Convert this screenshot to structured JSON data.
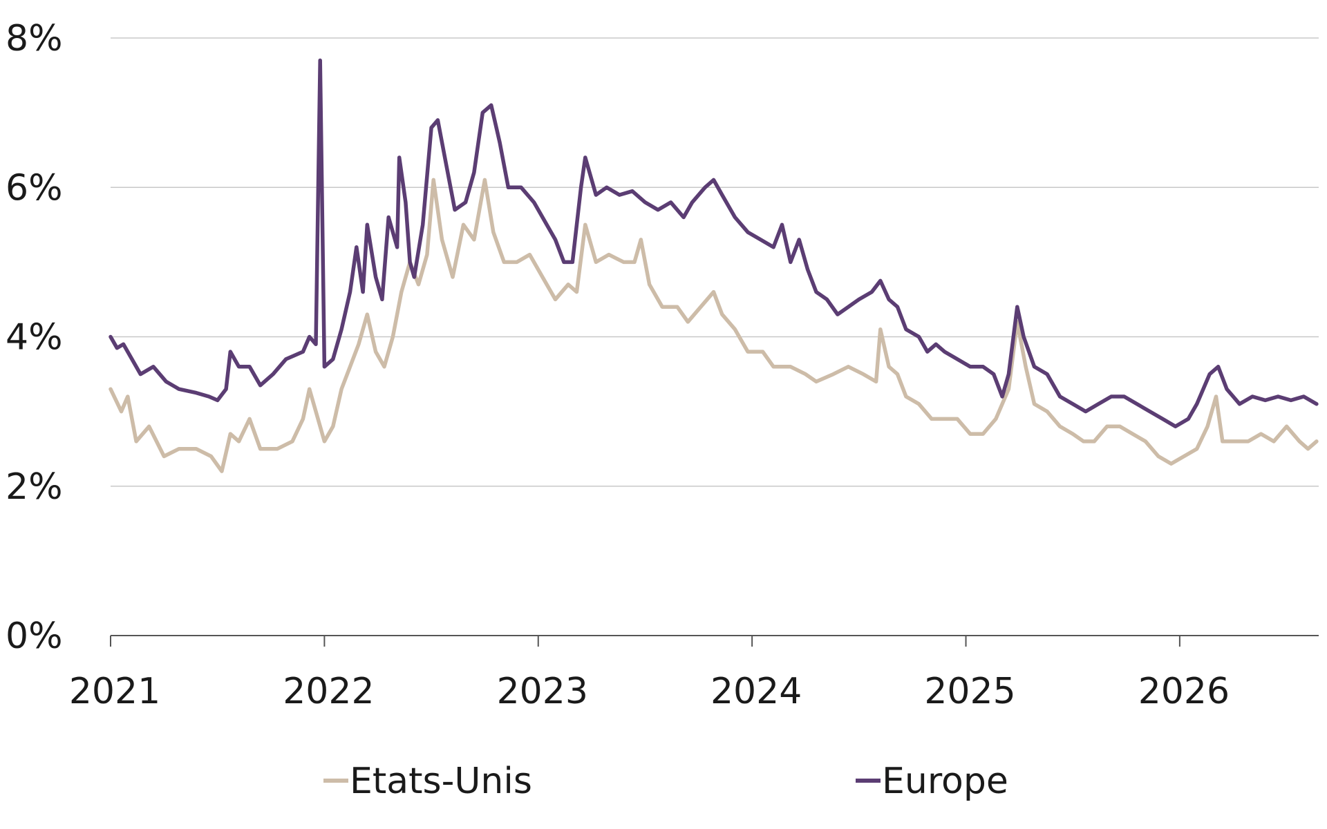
{
  "chart_data": {
    "type": "line",
    "title": "",
    "xlabel": "",
    "ylabel": "",
    "xlim": [
      2021.0,
      2026.65
    ],
    "ylim": [
      0,
      8
    ],
    "y_ticks": [
      0,
      2,
      4,
      6,
      8
    ],
    "y_tick_labels": [
      "0%",
      "2%",
      "4%",
      "6%",
      "8%"
    ],
    "x_ticks": [
      2021,
      2022,
      2023,
      2024,
      2025,
      2026
    ],
    "x_tick_labels": [
      "2021",
      "2022",
      "2023",
      "2024",
      "2025",
      "2026"
    ],
    "grid": "horizontal",
    "legend_position": "bottom",
    "series": [
      {
        "name": "Etats-Unis",
        "color": "#cdbca8",
        "points": [
          [
            2021.0,
            3.3
          ],
          [
            2021.05,
            3.0
          ],
          [
            2021.08,
            3.2
          ],
          [
            2021.12,
            2.6
          ],
          [
            2021.18,
            2.8
          ],
          [
            2021.25,
            2.4
          ],
          [
            2021.32,
            2.5
          ],
          [
            2021.4,
            2.5
          ],
          [
            2021.47,
            2.4
          ],
          [
            2021.52,
            2.2
          ],
          [
            2021.56,
            2.7
          ],
          [
            2021.6,
            2.6
          ],
          [
            2021.65,
            2.9
          ],
          [
            2021.7,
            2.5
          ],
          [
            2021.78,
            2.5
          ],
          [
            2021.85,
            2.6
          ],
          [
            2021.9,
            2.9
          ],
          [
            2021.93,
            3.3
          ],
          [
            2021.96,
            3.0
          ],
          [
            2022.0,
            2.6
          ],
          [
            2022.04,
            2.8
          ],
          [
            2022.08,
            3.3
          ],
          [
            2022.12,
            3.6
          ],
          [
            2022.16,
            3.9
          ],
          [
            2022.2,
            4.3
          ],
          [
            2022.24,
            3.8
          ],
          [
            2022.28,
            3.6
          ],
          [
            2022.32,
            4.0
          ],
          [
            2022.36,
            4.6
          ],
          [
            2022.4,
            5.0
          ],
          [
            2022.44,
            4.7
          ],
          [
            2022.48,
            5.1
          ],
          [
            2022.51,
            6.1
          ],
          [
            2022.55,
            5.3
          ],
          [
            2022.6,
            4.8
          ],
          [
            2022.65,
            5.5
          ],
          [
            2022.7,
            5.3
          ],
          [
            2022.75,
            6.1
          ],
          [
            2022.79,
            5.4
          ],
          [
            2022.84,
            5.0
          ],
          [
            2022.9,
            5.0
          ],
          [
            2022.96,
            5.1
          ],
          [
            2023.02,
            4.8
          ],
          [
            2023.08,
            4.5
          ],
          [
            2023.14,
            4.7
          ],
          [
            2023.18,
            4.6
          ],
          [
            2023.22,
            5.5
          ],
          [
            2023.27,
            5.0
          ],
          [
            2023.33,
            5.1
          ],
          [
            2023.4,
            5.0
          ],
          [
            2023.45,
            5.0
          ],
          [
            2023.48,
            5.3
          ],
          [
            2023.52,
            4.7
          ],
          [
            2023.58,
            4.4
          ],
          [
            2023.65,
            4.4
          ],
          [
            2023.7,
            4.2
          ],
          [
            2023.76,
            4.4
          ],
          [
            2023.82,
            4.6
          ],
          [
            2023.86,
            4.3
          ],
          [
            2023.92,
            4.1
          ],
          [
            2023.98,
            3.8
          ],
          [
            2024.05,
            3.8
          ],
          [
            2024.1,
            3.6
          ],
          [
            2024.18,
            3.6
          ],
          [
            2024.25,
            3.5
          ],
          [
            2024.3,
            3.4
          ],
          [
            2024.38,
            3.5
          ],
          [
            2024.45,
            3.6
          ],
          [
            2024.52,
            3.5
          ],
          [
            2024.58,
            3.4
          ],
          [
            2024.6,
            4.1
          ],
          [
            2024.64,
            3.6
          ],
          [
            2024.68,
            3.5
          ],
          [
            2024.72,
            3.2
          ],
          [
            2024.78,
            3.1
          ],
          [
            2024.84,
            2.9
          ],
          [
            2024.9,
            2.9
          ],
          [
            2024.96,
            2.9
          ],
          [
            2025.02,
            2.7
          ],
          [
            2025.08,
            2.7
          ],
          [
            2025.14,
            2.9
          ],
          [
            2025.2,
            3.3
          ],
          [
            2025.24,
            4.2
          ],
          [
            2025.28,
            3.6
          ],
          [
            2025.32,
            3.1
          ],
          [
            2025.38,
            3.0
          ],
          [
            2025.44,
            2.8
          ],
          [
            2025.5,
            2.7
          ],
          [
            2025.55,
            2.6
          ],
          [
            2025.6,
            2.6
          ],
          [
            2025.66,
            2.8
          ],
          [
            2025.72,
            2.8
          ],
          [
            2025.78,
            2.7
          ],
          [
            2025.84,
            2.6
          ],
          [
            2025.9,
            2.4
          ],
          [
            2025.96,
            2.3
          ],
          [
            2026.02,
            2.4
          ],
          [
            2026.08,
            2.5
          ],
          [
            2026.13,
            2.8
          ],
          [
            2026.17,
            3.2
          ],
          [
            2026.2,
            2.6
          ],
          [
            2026.26,
            2.6
          ],
          [
            2026.32,
            2.6
          ],
          [
            2026.38,
            2.7
          ],
          [
            2026.44,
            2.6
          ],
          [
            2026.5,
            2.8
          ],
          [
            2026.56,
            2.6
          ],
          [
            2026.6,
            2.5
          ],
          [
            2026.64,
            2.6
          ]
        ]
      },
      {
        "name": "Europe",
        "color": "#5b3d73",
        "points": [
          [
            2021.0,
            4.0
          ],
          [
            2021.03,
            3.85
          ],
          [
            2021.06,
            3.9
          ],
          [
            2021.1,
            3.7
          ],
          [
            2021.14,
            3.5
          ],
          [
            2021.2,
            3.6
          ],
          [
            2021.26,
            3.4
          ],
          [
            2021.32,
            3.3
          ],
          [
            2021.4,
            3.25
          ],
          [
            2021.46,
            3.2
          ],
          [
            2021.5,
            3.15
          ],
          [
            2021.54,
            3.3
          ],
          [
            2021.56,
            3.8
          ],
          [
            2021.6,
            3.6
          ],
          [
            2021.65,
            3.6
          ],
          [
            2021.7,
            3.35
          ],
          [
            2021.76,
            3.5
          ],
          [
            2021.82,
            3.7
          ],
          [
            2021.86,
            3.75
          ],
          [
            2021.9,
            3.8
          ],
          [
            2021.93,
            4.0
          ],
          [
            2021.96,
            3.9
          ],
          [
            2021.98,
            7.7
          ],
          [
            2022.0,
            3.6
          ],
          [
            2022.04,
            3.7
          ],
          [
            2022.08,
            4.1
          ],
          [
            2022.12,
            4.6
          ],
          [
            2022.15,
            5.2
          ],
          [
            2022.18,
            4.6
          ],
          [
            2022.2,
            5.5
          ],
          [
            2022.24,
            4.8
          ],
          [
            2022.27,
            4.5
          ],
          [
            2022.3,
            5.6
          ],
          [
            2022.34,
            5.2
          ],
          [
            2022.35,
            6.4
          ],
          [
            2022.38,
            5.8
          ],
          [
            2022.4,
            5.0
          ],
          [
            2022.42,
            4.8
          ],
          [
            2022.46,
            5.5
          ],
          [
            2022.5,
            6.8
          ],
          [
            2022.53,
            6.9
          ],
          [
            2022.57,
            6.3
          ],
          [
            2022.61,
            5.7
          ],
          [
            2022.66,
            5.8
          ],
          [
            2022.7,
            6.2
          ],
          [
            2022.74,
            7.0
          ],
          [
            2022.78,
            7.1
          ],
          [
            2022.82,
            6.6
          ],
          [
            2022.86,
            6.0
          ],
          [
            2022.92,
            6.0
          ],
          [
            2022.98,
            5.8
          ],
          [
            2023.04,
            5.5
          ],
          [
            2023.08,
            5.3
          ],
          [
            2023.12,
            5.0
          ],
          [
            2023.16,
            5.0
          ],
          [
            2023.2,
            6.0
          ],
          [
            2023.22,
            6.4
          ],
          [
            2023.27,
            5.9
          ],
          [
            2023.32,
            6.0
          ],
          [
            2023.38,
            5.9
          ],
          [
            2023.44,
            5.95
          ],
          [
            2023.5,
            5.8
          ],
          [
            2023.56,
            5.7
          ],
          [
            2023.62,
            5.8
          ],
          [
            2023.68,
            5.6
          ],
          [
            2023.72,
            5.8
          ],
          [
            2023.78,
            6.0
          ],
          [
            2023.82,
            6.1
          ],
          [
            2023.86,
            5.9
          ],
          [
            2023.92,
            5.6
          ],
          [
            2023.98,
            5.4
          ],
          [
            2024.04,
            5.3
          ],
          [
            2024.1,
            5.2
          ],
          [
            2024.14,
            5.5
          ],
          [
            2024.18,
            5.0
          ],
          [
            2024.22,
            5.3
          ],
          [
            2024.26,
            4.9
          ],
          [
            2024.3,
            4.6
          ],
          [
            2024.35,
            4.5
          ],
          [
            2024.4,
            4.3
          ],
          [
            2024.45,
            4.4
          ],
          [
            2024.5,
            4.5
          ],
          [
            2024.56,
            4.6
          ],
          [
            2024.6,
            4.75
          ],
          [
            2024.64,
            4.5
          ],
          [
            2024.68,
            4.4
          ],
          [
            2024.72,
            4.1
          ],
          [
            2024.78,
            4.0
          ],
          [
            2024.82,
            3.8
          ],
          [
            2024.86,
            3.9
          ],
          [
            2024.9,
            3.8
          ],
          [
            2024.96,
            3.7
          ],
          [
            2025.02,
            3.6
          ],
          [
            2025.08,
            3.6
          ],
          [
            2025.13,
            3.5
          ],
          [
            2025.17,
            3.2
          ],
          [
            2025.2,
            3.5
          ],
          [
            2025.24,
            4.4
          ],
          [
            2025.27,
            4.0
          ],
          [
            2025.32,
            3.6
          ],
          [
            2025.38,
            3.5
          ],
          [
            2025.44,
            3.2
          ],
          [
            2025.5,
            3.1
          ],
          [
            2025.56,
            3.0
          ],
          [
            2025.62,
            3.1
          ],
          [
            2025.68,
            3.2
          ],
          [
            2025.74,
            3.2
          ],
          [
            2025.8,
            3.1
          ],
          [
            2025.86,
            3.0
          ],
          [
            2025.92,
            2.9
          ],
          [
            2025.98,
            2.8
          ],
          [
            2026.04,
            2.9
          ],
          [
            2026.08,
            3.1
          ],
          [
            2026.14,
            3.5
          ],
          [
            2026.18,
            3.6
          ],
          [
            2026.22,
            3.3
          ],
          [
            2026.28,
            3.1
          ],
          [
            2026.34,
            3.2
          ],
          [
            2026.4,
            3.15
          ],
          [
            2026.46,
            3.2
          ],
          [
            2026.52,
            3.15
          ],
          [
            2026.58,
            3.2
          ],
          [
            2026.64,
            3.1
          ]
        ]
      }
    ]
  }
}
